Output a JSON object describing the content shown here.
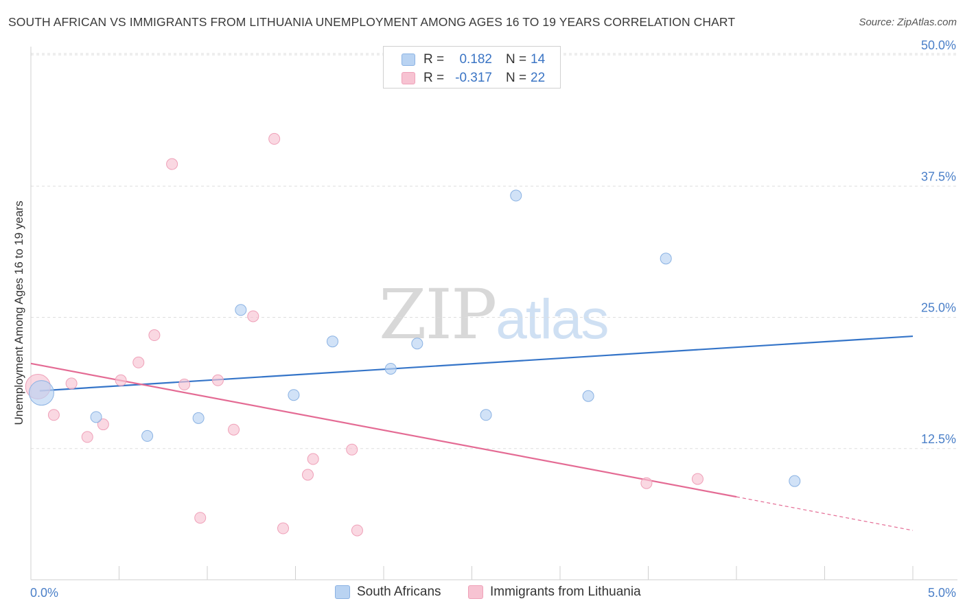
{
  "header": {
    "title": "SOUTH AFRICAN VS IMMIGRANTS FROM LITHUANIA UNEMPLOYMENT AMONG AGES 16 TO 19 YEARS CORRELATION CHART",
    "source": "Source: ZipAtlas.com"
  },
  "watermark": {
    "zip": "ZIP",
    "atlas": "atlas"
  },
  "legend": {
    "rows": [
      {
        "r_label": "R =",
        "r_value": "0.182",
        "n_label": "N =",
        "n_value": "14"
      },
      {
        "r_label": "R =",
        "r_value": "-0.317",
        "n_label": "N =",
        "n_value": "22"
      }
    ]
  },
  "bottom_legend": {
    "items": [
      {
        "label": "South Africans"
      },
      {
        "label": "Immigrants from Lithuania"
      }
    ]
  },
  "colors": {
    "blue_fill": "#b9d3f2",
    "blue_stroke": "#8ab2e3",
    "blue_line": "#3474c8",
    "pink_fill": "#f7c3d2",
    "pink_stroke": "#efa0b8",
    "pink_line": "#e46b94",
    "grid": "#dddddd",
    "tick_label": "#4a7fc8"
  },
  "chart_data": {
    "type": "scatter",
    "title": "SOUTH AFRICAN VS IMMIGRANTS FROM LITHUANIA UNEMPLOYMENT AMONG AGES 16 TO 19 YEARS CORRELATION CHART",
    "xlabel": "",
    "ylabel": "Unemployment Among Ages 16 to 19 years",
    "xlim": [
      0,
      5
    ],
    "ylim": [
      0,
      52
    ],
    "x_tick_labels": [
      "0.0%",
      "5.0%"
    ],
    "y_ticks": [
      12.5,
      25.0,
      37.5,
      50.0
    ],
    "y_tick_labels": [
      "12.5%",
      "25.0%",
      "37.5%",
      "50.0%"
    ],
    "grid": true,
    "legend_position": "top-center",
    "series": [
      {
        "name": "South Africans",
        "color": "blue",
        "r": 0.182,
        "n": 14,
        "points": [
          {
            "x": 0.06,
            "y": 17.8,
            "big": true
          },
          {
            "x": 0.37,
            "y": 15.5
          },
          {
            "x": 0.66,
            "y": 13.7
          },
          {
            "x": 0.95,
            "y": 15.4
          },
          {
            "x": 1.19,
            "y": 25.7
          },
          {
            "x": 1.49,
            "y": 17.6
          },
          {
            "x": 1.71,
            "y": 22.7
          },
          {
            "x": 2.04,
            "y": 20.1
          },
          {
            "x": 2.19,
            "y": 22.5
          },
          {
            "x": 2.58,
            "y": 15.7
          },
          {
            "x": 2.75,
            "y": 36.6
          },
          {
            "x": 3.16,
            "y": 17.5
          },
          {
            "x": 3.6,
            "y": 30.6
          },
          {
            "x": 4.33,
            "y": 9.4
          }
        ],
        "trend": {
          "x0": 0.05,
          "y0": 18.0,
          "x1": 5.0,
          "y1": 23.2
        }
      },
      {
        "name": "Immigrants from Lithuania",
        "color": "pink",
        "r": -0.317,
        "n": 22,
        "points": [
          {
            "x": 0.04,
            "y": 18.4,
            "big": true
          },
          {
            "x": 0.13,
            "y": 15.7
          },
          {
            "x": 0.23,
            "y": 18.7
          },
          {
            "x": 0.32,
            "y": 13.6
          },
          {
            "x": 0.41,
            "y": 14.8
          },
          {
            "x": 0.51,
            "y": 19.0
          },
          {
            "x": 0.61,
            "y": 20.7
          },
          {
            "x": 0.7,
            "y": 23.3
          },
          {
            "x": 0.8,
            "y": 39.6
          },
          {
            "x": 0.87,
            "y": 18.6
          },
          {
            "x": 0.96,
            "y": 5.9
          },
          {
            "x": 1.06,
            "y": 19.0
          },
          {
            "x": 1.15,
            "y": 14.3
          },
          {
            "x": 1.26,
            "y": 25.1
          },
          {
            "x": 1.38,
            "y": 42.0
          },
          {
            "x": 1.43,
            "y": 4.9
          },
          {
            "x": 1.57,
            "y": 10.0
          },
          {
            "x": 1.6,
            "y": 11.5
          },
          {
            "x": 1.82,
            "y": 12.4
          },
          {
            "x": 1.85,
            "y": 4.7
          },
          {
            "x": 3.49,
            "y": 9.2
          },
          {
            "x": 3.78,
            "y": 9.6
          }
        ],
        "trend": {
          "x0": 0.0,
          "y0": 20.6,
          "x1": 4.0,
          "y1": 7.9,
          "dash_to_x": 5.0,
          "dash_to_y": 4.7
        }
      }
    ]
  }
}
